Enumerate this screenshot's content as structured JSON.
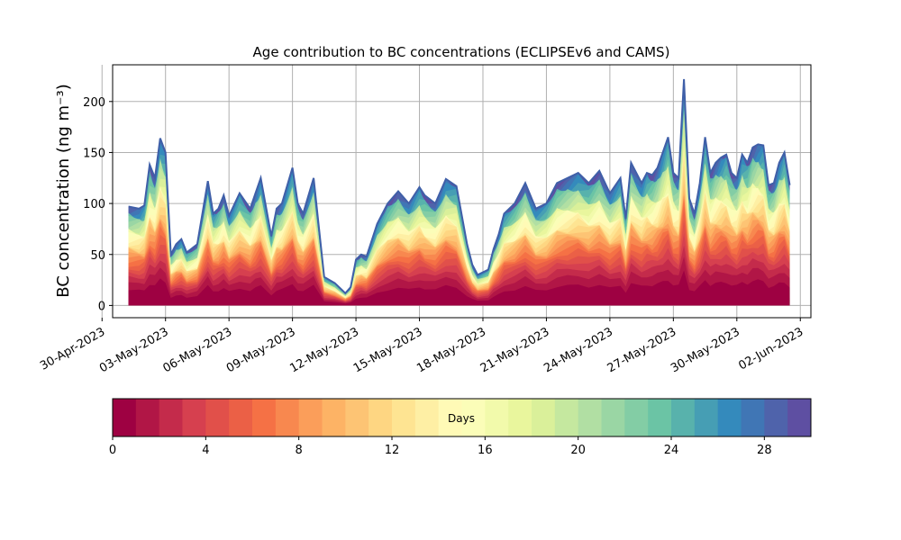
{
  "chart_data": {
    "type": "area",
    "stacked": true,
    "title": "Age contribution to BC concentrations (ECLIPSEv6 and CAMS)",
    "xlabel": "",
    "ylabel": "BC concentration (ng m⁻³)",
    "ylim": [
      -12,
      236
    ],
    "xlim": [
      "2023-04-30T12:00",
      "2023-06-02T12:00"
    ],
    "grid": true,
    "yticks": [
      0,
      50,
      100,
      150,
      200
    ],
    "xticks": [
      "2023-04-30",
      "2023-05-03",
      "2023-05-06",
      "2023-05-09",
      "2023-05-12",
      "2023-05-15",
      "2023-05-18",
      "2023-05-21",
      "2023-05-24",
      "2023-05-27",
      "2023-05-30",
      "2023-06-02"
    ],
    "xtick_labels": [
      "30-Apr-2023",
      "03-May-2023",
      "06-May-2023",
      "09-May-2023",
      "12-May-2023",
      "15-May-2023",
      "18-May-2023",
      "21-May-2023",
      "24-May-2023",
      "27-May-2023",
      "30-May-2023",
      "02-Jun-2023"
    ],
    "colormap": "Spectral",
    "colorbar": {
      "label": "Days",
      "min": 0,
      "max": 30,
      "bins": 30,
      "ticks": [
        0,
        4,
        8,
        12,
        16,
        20,
        24,
        28
      ]
    },
    "total_series": {
      "name": "",
      "x": [
        "2023-05-01T06:00",
        "2023-05-01T18:00",
        "2023-05-02T00:00",
        "2023-05-02T06:00",
        "2023-05-02T12:00",
        "2023-05-02T18:00",
        "2023-05-03T00:00",
        "2023-05-03T06:00",
        "2023-05-03T12:00",
        "2023-05-03T18:00",
        "2023-05-04T00:00",
        "2023-05-04T12:00",
        "2023-05-05T00:00",
        "2023-05-05T06:00",
        "2023-05-05T12:00",
        "2023-05-05T18:00",
        "2023-05-06T00:00",
        "2023-05-06T12:00",
        "2023-05-07T00:00",
        "2023-05-07T06:00",
        "2023-05-07T12:00",
        "2023-05-08T00:00",
        "2023-05-08T06:00",
        "2023-05-08T12:00",
        "2023-05-09T00:00",
        "2023-05-09T06:00",
        "2023-05-09T12:00",
        "2023-05-10T00:00",
        "2023-05-10T12:00",
        "2023-05-11T00:00",
        "2023-05-11T12:00",
        "2023-05-11T18:00",
        "2023-05-12T00:00",
        "2023-05-12T06:00",
        "2023-05-12T12:00",
        "2023-05-13T00:00",
        "2023-05-13T12:00",
        "2023-05-14T00:00",
        "2023-05-14T12:00",
        "2023-05-15T00:00",
        "2023-05-15T06:00",
        "2023-05-15T18:00",
        "2023-05-16T06:00",
        "2023-05-16T18:00",
        "2023-05-17T06:00",
        "2023-05-17T12:00",
        "2023-05-17T18:00",
        "2023-05-18T06:00",
        "2023-05-18T12:00",
        "2023-05-18T18:00",
        "2023-05-19T00:00",
        "2023-05-19T12:00",
        "2023-05-20T00:00",
        "2023-05-20T12:00",
        "2023-05-21T00:00",
        "2023-05-21T12:00",
        "2023-05-22T00:00",
        "2023-05-22T12:00",
        "2023-05-23T00:00",
        "2023-05-23T12:00",
        "2023-05-24T00:00",
        "2023-05-24T12:00",
        "2023-05-24T18:00",
        "2023-05-25T00:00",
        "2023-05-25T12:00",
        "2023-05-25T18:00",
        "2023-05-26T00:00",
        "2023-05-26T06:00",
        "2023-05-26T12:00",
        "2023-05-26T18:00",
        "2023-05-27T00:00",
        "2023-05-27T06:00",
        "2023-05-27T12:00",
        "2023-05-27T18:00",
        "2023-05-28T00:00",
        "2023-05-28T06:00",
        "2023-05-28T12:00",
        "2023-05-28T18:00",
        "2023-05-29T00:00",
        "2023-05-29T06:00",
        "2023-05-29T12:00",
        "2023-05-29T18:00",
        "2023-05-30T00:00",
        "2023-05-30T06:00",
        "2023-05-30T12:00",
        "2023-05-30T18:00",
        "2023-05-31T00:00",
        "2023-05-31T06:00",
        "2023-05-31T12:00",
        "2023-05-31T18:00",
        "2023-06-01T00:00",
        "2023-06-01T06:00",
        "2023-06-01T12:00"
      ],
      "values": [
        97,
        95,
        98,
        138,
        125,
        164,
        150,
        50,
        60,
        65,
        52,
        60,
        122,
        90,
        95,
        108,
        88,
        110,
        95,
        110,
        125,
        68,
        95,
        100,
        135,
        100,
        90,
        125,
        28,
        22,
        12,
        18,
        45,
        50,
        48,
        80,
        100,
        112,
        100,
        116,
        108,
        100,
        124,
        117,
        60,
        40,
        30,
        35,
        55,
        70,
        90,
        100,
        120,
        95,
        100,
        120,
        125,
        130,
        120,
        132,
        110,
        125,
        85,
        140,
        120,
        130,
        128,
        135,
        150,
        165,
        130,
        125,
        222,
        105,
        90,
        120,
        165,
        130,
        140,
        145,
        148,
        130,
        125,
        148,
        140,
        155,
        158,
        157,
        118,
        120,
        140,
        150,
        118
      ]
    }
  }
}
